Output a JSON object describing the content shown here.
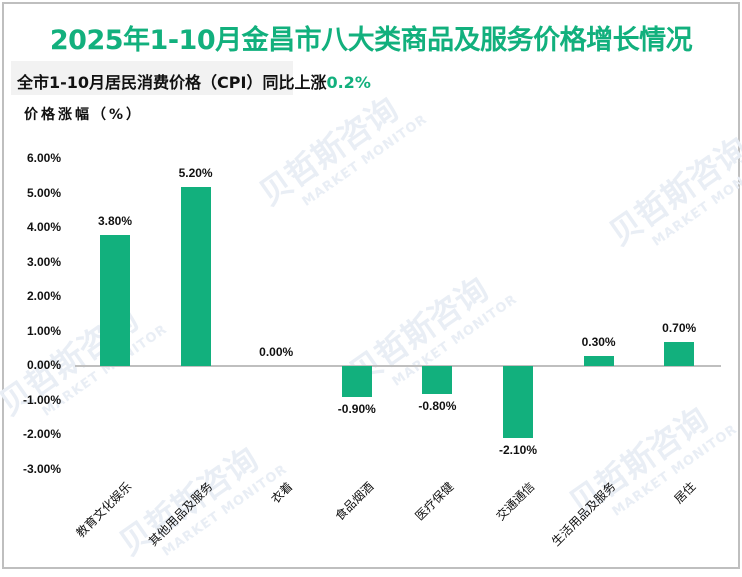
{
  "header": {
    "title": "2025年1-10月金昌市八大类商品及服务价格增长情况",
    "subtitle_prefix": "全市1-10月居民消费价格（CPI）同比上涨",
    "subtitle_value": "0.2%",
    "y_axis_label": "价格涨幅（%）"
  },
  "watermark": {
    "cn": "贝哲斯咨询",
    "en": "MARKET MONITOR"
  },
  "colors": {
    "accent": "#12b07d",
    "bar": "#12b07d",
    "axis": "#bfbfbf",
    "subtitle_bg": "#f2f2f2"
  },
  "chart_data": {
    "type": "bar",
    "title": "2025年1-10月金昌市八大类商品及服务价格增长情况",
    "subtitle": "全市1-10月居民消费价格（CPI）同比上涨0.2%",
    "xlabel": "",
    "ylabel": "价格涨幅（%）",
    "categories": [
      "教育文化娱乐",
      "其他用品及服务",
      "衣着",
      "食品烟酒",
      "医疗保健",
      "交通通信",
      "生活用品及服务",
      "居住"
    ],
    "values": [
      3.8,
      5.2,
      0.0,
      -0.9,
      -0.8,
      -2.1,
      0.3,
      0.7
    ],
    "data_labels": [
      "3.80%",
      "5.20%",
      "0.00%",
      "-0.90%",
      "-0.80%",
      "-2.10%",
      "0.30%",
      "0.70%"
    ],
    "ylim": [
      -3,
      6
    ],
    "yticks": [
      "6.00%",
      "5.00%",
      "4.00%",
      "3.00%",
      "2.00%",
      "1.00%",
      "0.00%",
      "-1.00%",
      "-2.00%",
      "-3.00%"
    ],
    "grid": false,
    "legend": null
  }
}
